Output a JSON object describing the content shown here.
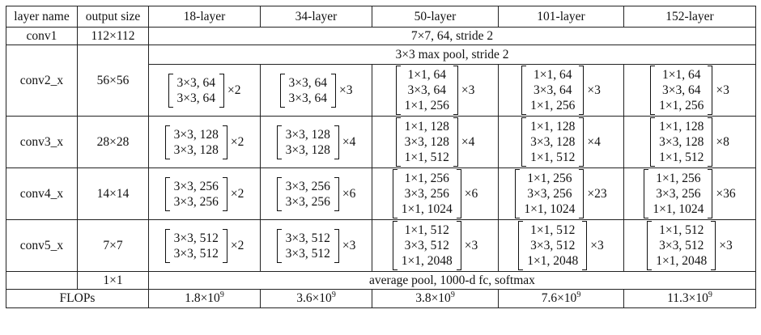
{
  "header": [
    "layer name",
    "output size",
    "18-layer",
    "34-layer",
    "50-layer",
    "101-layer",
    "152-layer"
  ],
  "conv1": {
    "name": "conv1",
    "output": "112×112",
    "desc": "7×7, 64, stride 2"
  },
  "pool": {
    "desc": "3×3 max pool, stride 2"
  },
  "stages": [
    {
      "name": "conv2_x",
      "output": "56×56",
      "blocks": [
        {
          "lines": [
            "3×3, 64",
            "3×3, 64"
          ],
          "mult": "×2"
        },
        {
          "lines": [
            "3×3, 64",
            "3×3, 64"
          ],
          "mult": "×3"
        },
        {
          "lines": [
            "1×1, 64",
            "3×3, 64",
            "1×1, 256"
          ],
          "mult": "×3"
        },
        {
          "lines": [
            "1×1, 64",
            "3×3, 64",
            "1×1, 256"
          ],
          "mult": "×3"
        },
        {
          "lines": [
            "1×1, 64",
            "3×3, 64",
            "1×1, 256"
          ],
          "mult": "×3"
        }
      ]
    },
    {
      "name": "conv3_x",
      "output": "28×28",
      "blocks": [
        {
          "lines": [
            "3×3, 128",
            "3×3, 128"
          ],
          "mult": "×2"
        },
        {
          "lines": [
            "3×3, 128",
            "3×3, 128"
          ],
          "mult": "×4"
        },
        {
          "lines": [
            "1×1, 128",
            "3×3, 128",
            "1×1, 512"
          ],
          "mult": "×4"
        },
        {
          "lines": [
            "1×1, 128",
            "3×3, 128",
            "1×1, 512"
          ],
          "mult": "×4"
        },
        {
          "lines": [
            "1×1, 128",
            "3×3, 128",
            "1×1, 512"
          ],
          "mult": "×8"
        }
      ]
    },
    {
      "name": "conv4_x",
      "output": "14×14",
      "blocks": [
        {
          "lines": [
            "3×3, 256",
            "3×3, 256"
          ],
          "mult": "×2"
        },
        {
          "lines": [
            "3×3, 256",
            "3×3, 256"
          ],
          "mult": "×6"
        },
        {
          "lines": [
            "1×1, 256",
            "3×3, 256",
            "1×1, 1024"
          ],
          "mult": "×6"
        },
        {
          "lines": [
            "1×1, 256",
            "3×3, 256",
            "1×1, 1024"
          ],
          "mult": "×23"
        },
        {
          "lines": [
            "1×1, 256",
            "3×3, 256",
            "1×1, 1024"
          ],
          "mult": "×36"
        }
      ]
    },
    {
      "name": "conv5_x",
      "output": "7×7",
      "blocks": [
        {
          "lines": [
            "3×3, 512",
            "3×3, 512"
          ],
          "mult": "×2"
        },
        {
          "lines": [
            "3×3, 512",
            "3×3, 512"
          ],
          "mult": "×3"
        },
        {
          "lines": [
            "1×1, 512",
            "3×3, 512",
            "1×1, 2048"
          ],
          "mult": "×3"
        },
        {
          "lines": [
            "1×1, 512",
            "3×3, 512",
            "1×1, 2048"
          ],
          "mult": "×3"
        },
        {
          "lines": [
            "1×1, 512",
            "3×3, 512",
            "1×1, 2048"
          ],
          "mult": "×3"
        }
      ]
    }
  ],
  "final": {
    "output": "1×1",
    "desc": "average pool, 1000-d fc, softmax"
  },
  "flops": {
    "label": "FLOPs",
    "values": [
      {
        "mantissa": "1.8×10",
        "exp": "9"
      },
      {
        "mantissa": "3.6×10",
        "exp": "9"
      },
      {
        "mantissa": "3.8×10",
        "exp": "9"
      },
      {
        "mantissa": "7.6×10",
        "exp": "9"
      },
      {
        "mantissa": "11.3×10",
        "exp": "9"
      }
    ]
  }
}
